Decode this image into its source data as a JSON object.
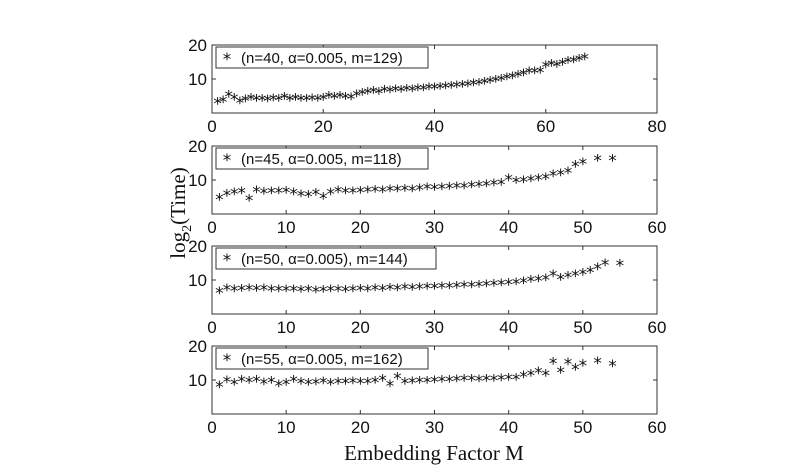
{
  "chart_data": [
    {
      "type": "scatter",
      "legend": "(n=40, α=0.005, m=129)",
      "xlim": [
        0,
        80
      ],
      "ylim": [
        0,
        20
      ],
      "xticks": [
        0,
        20,
        40,
        60,
        80
      ],
      "yticks": [
        10,
        20
      ],
      "series": [
        {
          "marker": "*",
          "points": [
            [
              1,
              3.1
            ],
            [
              2,
              3.6
            ],
            [
              3,
              5.1
            ],
            [
              4,
              4.3
            ],
            [
              5,
              3.3
            ],
            [
              6,
              3.8
            ],
            [
              7,
              4.2
            ],
            [
              8,
              3.9
            ],
            [
              9,
              4.0
            ],
            [
              10,
              3.8
            ],
            [
              11,
              4.1
            ],
            [
              12,
              3.9
            ],
            [
              13,
              4.5
            ],
            [
              14,
              3.9
            ],
            [
              15,
              4.2
            ],
            [
              16,
              4.0
            ],
            [
              17,
              3.9
            ],
            [
              18,
              4.1
            ],
            [
              19,
              4.0
            ],
            [
              20,
              4.3
            ],
            [
              21,
              4.9
            ],
            [
              22,
              4.6
            ],
            [
              23,
              4.8
            ],
            [
              24,
              4.5
            ],
            [
              25,
              4.4
            ],
            [
              26,
              5.3
            ],
            [
              27,
              5.8
            ],
            [
              28,
              6.0
            ],
            [
              29,
              6.3
            ],
            [
              30,
              6.1
            ],
            [
              31,
              6.6
            ],
            [
              32,
              6.5
            ],
            [
              33,
              6.8
            ],
            [
              34,
              6.6
            ],
            [
              35,
              6.9
            ],
            [
              36,
              6.8
            ],
            [
              37,
              7.0
            ],
            [
              38,
              7.1
            ],
            [
              39,
              7.3
            ],
            [
              40,
              7.4
            ],
            [
              41,
              7.5
            ],
            [
              42,
              7.6
            ],
            [
              43,
              7.8
            ],
            [
              44,
              8.0
            ],
            [
              45,
              8.1
            ],
            [
              46,
              8.3
            ],
            [
              47,
              8.5
            ],
            [
              48,
              8.7
            ],
            [
              49,
              9.0
            ],
            [
              50,
              9.2
            ],
            [
              51,
              9.6
            ],
            [
              52,
              9.9
            ],
            [
              53,
              10.3
            ],
            [
              54,
              10.6
            ],
            [
              55,
              11.0
            ],
            [
              56,
              11.5
            ],
            [
              57,
              12.0
            ],
            [
              58,
              12.1
            ],
            [
              59,
              12.2
            ],
            [
              60,
              13.8
            ],
            [
              61,
              14.3
            ],
            [
              62,
              13.9
            ],
            [
              63,
              14.6
            ],
            [
              64,
              15.1
            ],
            [
              65,
              15.3
            ],
            [
              66,
              15.8
            ],
            [
              67,
              16.2
            ]
          ]
        }
      ]
    },
    {
      "type": "scatter",
      "legend": "(n=45, α=0.005, m=118)",
      "xlim": [
        0,
        60
      ],
      "ylim": [
        0,
        20
      ],
      "xticks": [
        0,
        10,
        20,
        30,
        40,
        50,
        60
      ],
      "yticks": [
        10,
        20
      ],
      "series": [
        {
          "marker": "*",
          "points": [
            [
              1,
              4.5
            ],
            [
              2,
              5.8
            ],
            [
              3,
              6.2
            ],
            [
              4,
              6.4
            ],
            [
              5,
              4.3
            ],
            [
              6,
              6.7
            ],
            [
              7,
              6.3
            ],
            [
              8,
              6.5
            ],
            [
              9,
              6.4
            ],
            [
              10,
              6.6
            ],
            [
              11,
              6.2
            ],
            [
              12,
              5.6
            ],
            [
              13,
              5.5
            ],
            [
              14,
              6.1
            ],
            [
              15,
              4.9
            ],
            [
              16,
              6.2
            ],
            [
              17,
              6.7
            ],
            [
              18,
              6.4
            ],
            [
              19,
              6.5
            ],
            [
              20,
              6.6
            ],
            [
              21,
              6.7
            ],
            [
              22,
              6.9
            ],
            [
              23,
              6.8
            ],
            [
              24,
              7.0
            ],
            [
              25,
              7.1
            ],
            [
              26,
              7.2
            ],
            [
              27,
              7.1
            ],
            [
              28,
              7.3
            ],
            [
              29,
              7.6
            ],
            [
              30,
              7.5
            ],
            [
              31,
              7.7
            ],
            [
              32,
              7.8
            ],
            [
              33,
              7.9
            ],
            [
              34,
              8.0
            ],
            [
              35,
              8.2
            ],
            [
              36,
              8.4
            ],
            [
              37,
              8.6
            ],
            [
              38,
              8.8
            ],
            [
              39,
              9.0
            ],
            [
              40,
              10.3
            ],
            [
              41,
              9.6
            ],
            [
              42,
              9.7
            ],
            [
              43,
              10.0
            ],
            [
              44,
              10.3
            ],
            [
              45,
              10.6
            ],
            [
              46,
              11.4
            ],
            [
              47,
              11.8
            ],
            [
              48,
              12.4
            ],
            [
              49,
              14.3
            ],
            [
              50,
              15.0
            ],
            [
              52,
              16.1
            ],
            [
              54,
              16.0
            ]
          ]
        }
      ]
    },
    {
      "type": "scatter",
      "legend": "(n=50, α=0.005), m=144)",
      "xlim": [
        0,
        60
      ],
      "ylim": [
        0,
        20
      ],
      "xticks": [
        0,
        10,
        20,
        30,
        40,
        50,
        60
      ],
      "yticks": [
        10,
        20
      ],
      "series": [
        {
          "marker": "*",
          "points": [
            [
              1,
              6.4
            ],
            [
              2,
              7.3
            ],
            [
              3,
              7.1
            ],
            [
              4,
              7.2
            ],
            [
              5,
              7.4
            ],
            [
              6,
              7.2
            ],
            [
              7,
              7.4
            ],
            [
              8,
              7.1
            ],
            [
              9,
              7.0
            ],
            [
              10,
              7.0
            ],
            [
              11,
              7.1
            ],
            [
              12,
              6.9
            ],
            [
              13,
              7.0
            ],
            [
              14,
              6.8
            ],
            [
              15,
              6.9
            ],
            [
              16,
              7.0
            ],
            [
              17,
              7.1
            ],
            [
              18,
              6.9
            ],
            [
              19,
              7.0
            ],
            [
              20,
              7.2
            ],
            [
              21,
              7.0
            ],
            [
              22,
              7.3
            ],
            [
              23,
              7.2
            ],
            [
              24,
              7.5
            ],
            [
              25,
              7.4
            ],
            [
              26,
              7.6
            ],
            [
              27,
              7.5
            ],
            [
              28,
              7.7
            ],
            [
              29,
              7.8
            ],
            [
              30,
              7.8
            ],
            [
              31,
              7.9
            ],
            [
              32,
              8.0
            ],
            [
              33,
              8.1
            ],
            [
              34,
              8.2
            ],
            [
              35,
              8.3
            ],
            [
              36,
              8.4
            ],
            [
              37,
              8.5
            ],
            [
              38,
              8.7
            ],
            [
              39,
              8.8
            ],
            [
              40,
              9.0
            ],
            [
              41,
              9.1
            ],
            [
              42,
              9.4
            ],
            [
              43,
              9.8
            ],
            [
              44,
              10.0
            ],
            [
              45,
              10.3
            ],
            [
              46,
              11.5
            ],
            [
              47,
              10.4
            ],
            [
              48,
              11.0
            ],
            [
              49,
              11.5
            ],
            [
              50,
              11.9
            ],
            [
              51,
              12.5
            ],
            [
              52,
              13.5
            ],
            [
              53,
              14.7
            ],
            [
              55,
              14.6
            ]
          ]
        }
      ]
    },
    {
      "type": "scatter",
      "legend": "(n=55, α=0.005, m=162)",
      "xlim": [
        0,
        60
      ],
      "ylim": [
        0,
        20
      ],
      "xticks": [
        0,
        10,
        20,
        30,
        40,
        50,
        60
      ],
      "yticks": [
        10,
        20
      ],
      "series": [
        {
          "marker": "*",
          "points": [
            [
              1,
              8.3
            ],
            [
              2,
              9.7
            ],
            [
              3,
              9.0
            ],
            [
              4,
              9.9
            ],
            [
              5,
              9.6
            ],
            [
              6,
              9.9
            ],
            [
              7,
              9.1
            ],
            [
              8,
              9.6
            ],
            [
              9,
              8.6
            ],
            [
              10,
              8.9
            ],
            [
              11,
              9.8
            ],
            [
              12,
              9.2
            ],
            [
              13,
              8.9
            ],
            [
              14,
              9.1
            ],
            [
              15,
              9.4
            ],
            [
              16,
              9.0
            ],
            [
              17,
              9.3
            ],
            [
              18,
              9.3
            ],
            [
              19,
              9.4
            ],
            [
              20,
              9.3
            ],
            [
              21,
              9.2
            ],
            [
              22,
              9.6
            ],
            [
              23,
              10.1
            ],
            [
              24,
              8.5
            ],
            [
              25,
              10.8
            ],
            [
              26,
              9.3
            ],
            [
              27,
              9.4
            ],
            [
              28,
              9.6
            ],
            [
              29,
              9.5
            ],
            [
              30,
              9.7
            ],
            [
              31,
              9.8
            ],
            [
              32,
              9.9
            ],
            [
              33,
              10.0
            ],
            [
              34,
              10.1
            ],
            [
              35,
              10.2
            ],
            [
              36,
              10.0
            ],
            [
              37,
              10.2
            ],
            [
              38,
              10.1
            ],
            [
              39,
              10.3
            ],
            [
              40,
              10.4
            ],
            [
              41,
              10.5
            ],
            [
              42,
              11.2
            ],
            [
              43,
              11.6
            ],
            [
              44,
              12.4
            ],
            [
              45,
              11.6
            ],
            [
              46,
              15.2
            ],
            [
              47,
              12.5
            ],
            [
              48,
              15.0
            ],
            [
              49,
              13.4
            ],
            [
              50,
              14.5
            ],
            [
              52,
              15.3
            ],
            [
              54,
              14.4
            ]
          ]
        }
      ]
    }
  ],
  "axes": {
    "xlabel": "Embedding Factor M",
    "ylabel_main": "log",
    "ylabel_sub": "2",
    "ylabel_rest": "(Time)"
  }
}
